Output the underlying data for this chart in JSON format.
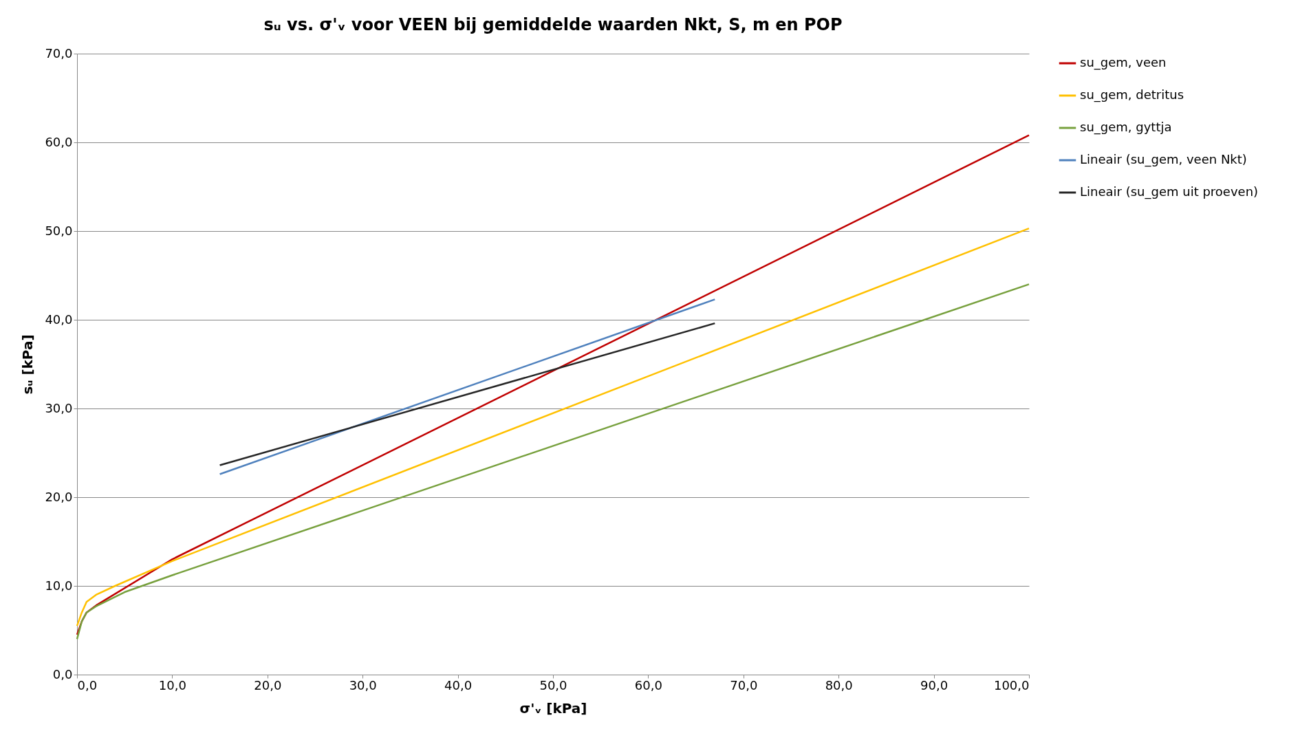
{
  "chart_data": {
    "type": "line",
    "title": "sᵤ vs. σ'ᵥ voor VEEN bij gemiddelde waarden Nkt, S, m en POP",
    "xlabel": "σ'ᵥ [kPa]",
    "ylabel": "sᵤ [kPa]",
    "xlim": [
      0,
      100
    ],
    "ylim": [
      0,
      70
    ],
    "xticks": [
      {
        "value": 0,
        "label": "0,0"
      },
      {
        "value": 10,
        "label": "10,0"
      },
      {
        "value": 20,
        "label": "20,0"
      },
      {
        "value": 30,
        "label": "30,0"
      },
      {
        "value": 40,
        "label": "40,0"
      },
      {
        "value": 50,
        "label": "50,0"
      },
      {
        "value": 60,
        "label": "60,0"
      },
      {
        "value": 70,
        "label": "70,0"
      },
      {
        "value": 80,
        "label": "80,0"
      },
      {
        "value": 90,
        "label": "90,0"
      },
      {
        "value": 100,
        "label": "100,0"
      }
    ],
    "yticks": [
      {
        "value": 0,
        "label": "0,0"
      },
      {
        "value": 10,
        "label": "10,0"
      },
      {
        "value": 20,
        "label": "20,0"
      },
      {
        "value": 30,
        "label": "30,0"
      },
      {
        "value": 40,
        "label": "40,0"
      },
      {
        "value": 50,
        "label": "50,0"
      },
      {
        "value": 60,
        "label": "60,0"
      },
      {
        "value": 70,
        "label": "70,0"
      }
    ],
    "grid": "y",
    "legend": "right",
    "line_style": "solid",
    "marker": "none",
    "series": [
      {
        "name": "su_gem, veen",
        "color": "#c00000",
        "x": [
          0,
          0.5,
          1,
          2,
          10,
          100
        ],
        "values": [
          4.5,
          6,
          7,
          7.8,
          13,
          60.8
        ]
      },
      {
        "name": "su_gem, detritus",
        "color": "#ffc000",
        "x": [
          0,
          0.5,
          1,
          2,
          4,
          10,
          100
        ],
        "values": [
          5.5,
          7,
          8.2,
          9,
          10,
          12.8,
          50.3
        ]
      },
      {
        "name": "su_gem, gyttja",
        "color": "#77a03d",
        "x": [
          0,
          0.5,
          1,
          2,
          5,
          10,
          100
        ],
        "values": [
          4,
          6,
          7,
          7.7,
          9.3,
          11.2,
          44
        ]
      },
      {
        "name": "Lineair (su_gem, veen Nkt)",
        "color": "#4f81bd",
        "x": [
          15,
          67
        ],
        "values": [
          22.6,
          42.3
        ]
      },
      {
        "name": "Lineair (su_gem uit proeven)",
        "color": "#262626",
        "x": [
          15,
          67
        ],
        "values": [
          23.6,
          39.6
        ]
      }
    ]
  }
}
